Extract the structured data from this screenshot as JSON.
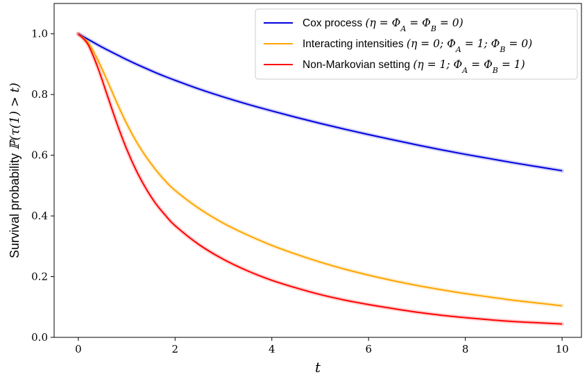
{
  "chart_data": {
    "type": "line",
    "xlabel": "t",
    "ylabel_prefix": "Survival probability ",
    "ylabel_math": "ℙ(τ(1) > t)",
    "xlim": [
      -0.5,
      10.4
    ],
    "ylim": [
      0.0,
      1.1
    ],
    "xticks": [
      0,
      2,
      4,
      6,
      8,
      10
    ],
    "yticks": [
      0.0,
      0.2,
      0.4,
      0.6,
      0.8,
      1.0
    ],
    "xtick_labels": [
      "0",
      "2",
      "4",
      "6",
      "8",
      "10"
    ],
    "ytick_labels": [
      "0.0",
      "0.2",
      "0.4",
      "0.6",
      "0.8",
      "1.0"
    ],
    "grid": false,
    "legend_position": "top-right",
    "x": [
      0,
      0.2,
      0.4,
      0.6,
      0.8,
      1.0,
      1.2,
      1.4,
      1.6,
      1.8,
      2.0,
      2.5,
      3.0,
      3.5,
      4.0,
      4.5,
      5.0,
      5.5,
      6.0,
      6.5,
      7.0,
      7.5,
      8.0,
      8.5,
      9.0,
      9.5,
      10.0
    ],
    "series": [
      {
        "name_text": "Cox process ",
        "name_math": "(η = Φ_A = Φ_B = 0)",
        "color": "#0000dd",
        "values": [
          1.0,
          0.982,
          0.964,
          0.947,
          0.931,
          0.915,
          0.9,
          0.886,
          0.872,
          0.859,
          0.847,
          0.818,
          0.792,
          0.768,
          0.746,
          0.725,
          0.705,
          0.686,
          0.668,
          0.651,
          0.634,
          0.618,
          0.603,
          0.589,
          0.575,
          0.562,
          0.549
        ]
      },
      {
        "name_text": "Interacting intensities ",
        "name_math": "(η = 0; Φ_A = 1; Φ_B = 0)",
        "color": "#ffa500",
        "values": [
          1.0,
          0.972,
          0.915,
          0.845,
          0.772,
          0.704,
          0.645,
          0.595,
          0.552,
          0.515,
          0.484,
          0.424,
          0.376,
          0.337,
          0.303,
          0.274,
          0.248,
          0.225,
          0.205,
          0.187,
          0.171,
          0.157,
          0.144,
          0.133,
          0.122,
          0.113,
          0.104
        ]
      },
      {
        "name_text": "Non-Markovian setting ",
        "name_math": "(η = 1; Φ_A = Φ_B = 1)",
        "color": "#ff0000",
        "values": [
          1.0,
          0.965,
          0.89,
          0.797,
          0.704,
          0.62,
          0.549,
          0.49,
          0.441,
          0.402,
          0.368,
          0.305,
          0.257,
          0.219,
          0.188,
          0.163,
          0.141,
          0.123,
          0.108,
          0.095,
          0.083,
          0.073,
          0.065,
          0.058,
          0.052,
          0.048,
          0.044
        ]
      }
    ]
  }
}
